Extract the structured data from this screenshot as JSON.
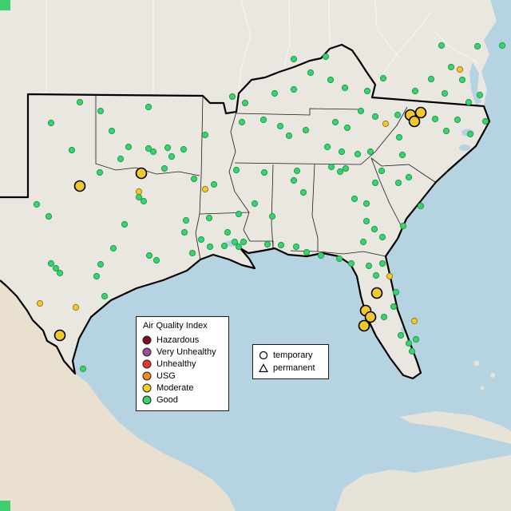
{
  "legend": {
    "title": "Air Quality Index",
    "items": [
      {
        "label": "Hazardous",
        "color": "#7a0b22"
      },
      {
        "label": "Very Unhealthy",
        "color": "#9b4f96"
      },
      {
        "label": "Unhealthy",
        "color": "#e8392b"
      },
      {
        "label": "USG",
        "color": "#f08a24"
      },
      {
        "label": "Moderate",
        "color": "#f2ce2c"
      },
      {
        "label": "Good",
        "color": "#3ecf6f"
      }
    ]
  },
  "shape_legend": {
    "items": [
      {
        "label": "temporary",
        "shape": "circle"
      },
      {
        "label": "permanent",
        "shape": "triangle"
      }
    ]
  },
  "map": {
    "colors": {
      "water": "#b5d3e0",
      "land": "#eae7e1",
      "land_foreign": "#e9e0d0",
      "land_island": "#e7e3d8",
      "good": "#3ecf6f",
      "good_stroke": "#1f9e4d",
      "moderate": "#f2c832",
      "moderate_stroke": "#9a7b1a",
      "marker_outline": "#000000"
    },
    "markers": {
      "good": [
        [
          100,
          128
        ],
        [
          126,
          139
        ],
        [
          64,
          154
        ],
        [
          140,
          164
        ],
        [
          186,
          134
        ],
        [
          90,
          188
        ],
        [
          161,
          184
        ],
        [
          192,
          190
        ],
        [
          230,
          187
        ],
        [
          257,
          169
        ],
        [
          368,
          74
        ],
        [
          408,
          71
        ],
        [
          389,
          91
        ],
        [
          414,
          100
        ],
        [
          432,
          110
        ],
        [
          368,
          112
        ],
        [
          344,
          117
        ],
        [
          307,
          129
        ],
        [
          291,
          121
        ],
        [
          553,
          57
        ],
        [
          598,
          58
        ],
        [
          629,
          57
        ],
        [
          565,
          84
        ],
        [
          540,
          99
        ],
        [
          579,
          100
        ],
        [
          520,
          114
        ],
        [
          557,
          117
        ],
        [
          587,
          128
        ],
        [
          601,
          119
        ],
        [
          480,
          98
        ],
        [
          460,
          114
        ],
        [
          452,
          139
        ],
        [
          470,
          146
        ],
        [
          498,
          144
        ],
        [
          545,
          149
        ],
        [
          573,
          150
        ],
        [
          559,
          164
        ],
        [
          589,
          168
        ],
        [
          420,
          153
        ],
        [
          435,
          160
        ],
        [
          500,
          172
        ],
        [
          608,
          152
        ],
        [
          330,
          150
        ],
        [
          351,
          158
        ],
        [
          303,
          153
        ],
        [
          383,
          163
        ],
        [
          362,
          170
        ],
        [
          296,
          213
        ],
        [
          410,
          184
        ],
        [
          428,
          190
        ],
        [
          464,
          190
        ],
        [
          504,
          194
        ],
        [
          415,
          209
        ],
        [
          426,
          215
        ],
        [
          448,
          193
        ],
        [
          433,
          211
        ],
        [
          478,
          214
        ],
        [
          470,
          229
        ],
        [
          499,
          229
        ],
        [
          512,
          222
        ],
        [
          444,
          249
        ],
        [
          459,
          255
        ],
        [
          469,
          287
        ],
        [
          479,
          297
        ],
        [
          459,
          277
        ],
        [
          505,
          283
        ],
        [
          527,
          258
        ],
        [
          372,
          214
        ],
        [
          368,
          226
        ],
        [
          380,
          241
        ],
        [
          341,
          271
        ],
        [
          331,
          216
        ],
        [
          319,
          255
        ],
        [
          299,
          268
        ],
        [
          285,
          291
        ],
        [
          305,
          303
        ],
        [
          335,
          306
        ],
        [
          352,
          307
        ],
        [
          371,
          309
        ],
        [
          384,
          316
        ],
        [
          402,
          320
        ],
        [
          425,
          324
        ],
        [
          440,
          330
        ],
        [
          455,
          303
        ],
        [
          231,
          291
        ],
        [
          252,
          300
        ],
        [
          263,
          309
        ],
        [
          281,
          308
        ],
        [
          294,
          303
        ],
        [
          299,
          309
        ],
        [
          233,
          276
        ],
        [
          262,
          273
        ],
        [
          241,
          317
        ],
        [
          243,
          224
        ],
        [
          268,
          231
        ],
        [
          215,
          196
        ],
        [
          206,
          211
        ],
        [
          151,
          199
        ],
        [
          186,
          186
        ],
        [
          125,
          216
        ],
        [
          210,
          185
        ],
        [
          174,
          247
        ],
        [
          180,
          252
        ],
        [
          142,
          311
        ],
        [
          126,
          331
        ],
        [
          187,
          320
        ],
        [
          196,
          326
        ],
        [
          156,
          281
        ],
        [
          46,
          256
        ],
        [
          61,
          271
        ],
        [
          64,
          330
        ],
        [
          70,
          336
        ],
        [
          75,
          342
        ],
        [
          121,
          346
        ],
        [
          131,
          371
        ],
        [
          104,
          462
        ],
        [
          479,
          330
        ],
        [
          462,
          333
        ],
        [
          471,
          345
        ],
        [
          493,
          384
        ],
        [
          496,
          366
        ],
        [
          481,
          397
        ],
        [
          502,
          420
        ],
        [
          512,
          430
        ],
        [
          521,
          425
        ],
        [
          516,
          440
        ]
      ],
      "moderate_small": [
        [
          576,
          87
        ],
        [
          174,
          240
        ],
        [
          257,
          237
        ],
        [
          50,
          380
        ],
        [
          95,
          385
        ],
        [
          488,
          346
        ],
        [
          519,
          402
        ],
        [
          483,
          155
        ]
      ],
      "moderate_large": [
        [
          100,
          233
        ],
        [
          177,
          217
        ],
        [
          514,
          144
        ],
        [
          527,
          141
        ],
        [
          519,
          152
        ],
        [
          472,
          367
        ],
        [
          458,
          389
        ],
        [
          464,
          397
        ],
        [
          456,
          408
        ],
        [
          75,
          420
        ]
      ]
    }
  }
}
